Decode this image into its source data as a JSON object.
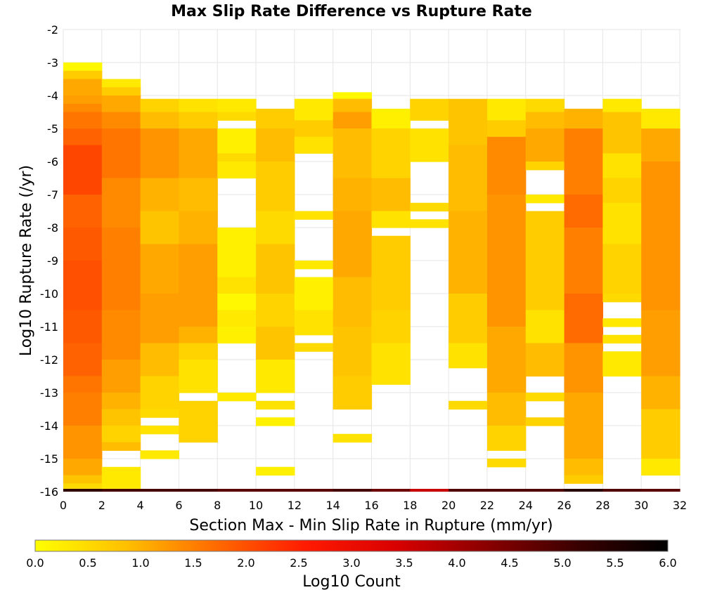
{
  "chart_data": {
    "type": "heatmap",
    "title": "Max Slip Rate Difference vs Rupture Rate",
    "xlabel": "Section Max - Min Slip Rate in Rupture (mm/yr)",
    "ylabel": "Log10 Rupture Rate (/yr)",
    "xlim": [
      0,
      32
    ],
    "ylim": [
      -16,
      -2
    ],
    "x_bin_width": 2,
    "y_bin_width": 0.25,
    "x_ticks": [
      "0",
      "2",
      "4",
      "6",
      "8",
      "10",
      "12",
      "14",
      "16",
      "18",
      "20",
      "22",
      "24",
      "26",
      "28",
      "30",
      "32"
    ],
    "y_ticks": [
      "-2",
      "-3",
      "-4",
      "-5",
      "-6",
      "-7",
      "-8",
      "-9",
      "-10",
      "-11",
      "-12",
      "-13",
      "-14",
      "-15",
      "-16"
    ],
    "grid": true,
    "colorbar": {
      "label": "Log10 Count",
      "range": [
        0,
        6
      ],
      "ticks": [
        "0.0",
        "0.5",
        "1.0",
        "1.5",
        "2.0",
        "2.5",
        "3.0",
        "3.5",
        "4.0",
        "4.5",
        "5.0",
        "5.5",
        "6.0"
      ],
      "colormap": [
        "#ffff00",
        "#ffc000",
        "#ff6a00",
        "#ff1a00",
        "#d80000",
        "#8a0000",
        "#3a0000",
        "#000000"
      ]
    },
    "columns": [
      {
        "x_range": [
          0,
          2
        ],
        "count_at_minus16": 5.3,
        "bins": [
          [
            -3.0,
            -3.25,
            0.1
          ],
          [
            -3.25,
            -3.5,
            0.7
          ],
          [
            -3.5,
            -4.0,
            1.1
          ],
          [
            -4.0,
            -4.25,
            1.2
          ],
          [
            -4.25,
            -4.5,
            1.4
          ],
          [
            -4.5,
            -5.0,
            1.6
          ],
          [
            -5.0,
            -5.5,
            1.8
          ],
          [
            -5.5,
            -7.0,
            2.1
          ],
          [
            -7.0,
            -8.0,
            1.8
          ],
          [
            -8.0,
            -9.0,
            1.9
          ],
          [
            -9.0,
            -10.5,
            2.0
          ],
          [
            -10.5,
            -11.5,
            1.9
          ],
          [
            -11.5,
            -12.5,
            1.8
          ],
          [
            -12.5,
            -13.0,
            1.6
          ],
          [
            -13.0,
            -14.0,
            1.5
          ],
          [
            -14.0,
            -15.0,
            1.3
          ],
          [
            -15.0,
            -15.5,
            1.1
          ],
          [
            -15.5,
            -15.75,
            0.8
          ],
          [
            -15.75,
            -15.9,
            0.5
          ]
        ]
      },
      {
        "x_range": [
          2,
          4
        ],
        "count_at_minus16": 5.0,
        "bins": [
          [
            -3.5,
            -3.75,
            0.3
          ],
          [
            -3.75,
            -4.0,
            0.7
          ],
          [
            -4.0,
            -4.5,
            1.1
          ],
          [
            -4.5,
            -5.0,
            1.4
          ],
          [
            -5.0,
            -6.5,
            1.6
          ],
          [
            -6.5,
            -8.0,
            1.4
          ],
          [
            -8.0,
            -10.5,
            1.5
          ],
          [
            -10.5,
            -12.0,
            1.4
          ],
          [
            -12.0,
            -13.0,
            1.2
          ],
          [
            -13.0,
            -13.5,
            1.0
          ],
          [
            -13.5,
            -14.0,
            0.8
          ],
          [
            -14.0,
            -14.5,
            0.6
          ],
          [
            -14.5,
            -14.75,
            0.9
          ],
          [
            -15.25,
            -15.9,
            0.3
          ]
        ]
      },
      {
        "x_range": [
          4,
          6
        ],
        "count_at_minus16": 5.0,
        "bins": [
          [
            -4.1,
            -4.5,
            0.6
          ],
          [
            -4.5,
            -5.0,
            0.9
          ],
          [
            -5.0,
            -6.5,
            1.3
          ],
          [
            -6.5,
            -7.5,
            1.0
          ],
          [
            -7.5,
            -8.5,
            0.8
          ],
          [
            -8.5,
            -10.0,
            1.1
          ],
          [
            -10.0,
            -11.5,
            1.2
          ],
          [
            -11.5,
            -12.5,
            0.9
          ],
          [
            -12.5,
            -13.5,
            0.6
          ],
          [
            -13.5,
            -13.75,
            0.5
          ],
          [
            -14.0,
            -14.25,
            0.4
          ],
          [
            -14.75,
            -15.0,
            0.3
          ]
        ]
      },
      {
        "x_range": [
          6,
          8
        ],
        "count_at_minus16": 5.0,
        "bins": [
          [
            -4.1,
            -4.5,
            0.4
          ],
          [
            -4.5,
            -5.0,
            0.7
          ],
          [
            -5.0,
            -6.5,
            1.1
          ],
          [
            -6.5,
            -7.5,
            0.9
          ],
          [
            -7.5,
            -8.5,
            1.0
          ],
          [
            -8.5,
            -11.0,
            1.2
          ],
          [
            -11.0,
            -11.5,
            1.0
          ],
          [
            -11.5,
            -12.0,
            0.6
          ],
          [
            -12.0,
            -13.0,
            0.4
          ],
          [
            -13.25,
            -14.5,
            0.6
          ]
        ]
      },
      {
        "x_range": [
          8,
          10
        ],
        "count_at_minus16": 4.8,
        "bins": [
          [
            -4.1,
            -4.5,
            0.3
          ],
          [
            -4.5,
            -4.75,
            0.5
          ],
          [
            -5.0,
            -5.75,
            0.2
          ],
          [
            -5.75,
            -6.0,
            0.5
          ],
          [
            -6.0,
            -6.5,
            0.3
          ],
          [
            -8.0,
            -9.5,
            0.2
          ],
          [
            -9.5,
            -10.0,
            0.4
          ],
          [
            -10.0,
            -10.5,
            0.1
          ],
          [
            -10.5,
            -11.0,
            0.3
          ],
          [
            -11.0,
            -11.5,
            0.2
          ],
          [
            -13.0,
            -13.25,
            0.3
          ]
        ]
      },
      {
        "x_range": [
          10,
          12
        ],
        "count_at_minus16": 4.8,
        "bins": [
          [
            -4.4,
            -5.0,
            0.7
          ],
          [
            -5.0,
            -6.0,
            0.9
          ],
          [
            -6.0,
            -7.5,
            0.7
          ],
          [
            -7.5,
            -8.5,
            0.5
          ],
          [
            -8.5,
            -10.0,
            0.8
          ],
          [
            -10.0,
            -11.0,
            0.6
          ],
          [
            -11.0,
            -12.0,
            0.8
          ],
          [
            -12.0,
            -13.0,
            0.3
          ],
          [
            -13.25,
            -13.5,
            0.4
          ],
          [
            -13.75,
            -14.0,
            0.2
          ],
          [
            -15.25,
            -15.5,
            0.2
          ]
        ]
      },
      {
        "x_range": [
          12,
          14
        ],
        "count_at_minus16": 4.8,
        "bins": [
          [
            -4.1,
            -4.75,
            0.3
          ],
          [
            -4.75,
            -5.25,
            0.7
          ],
          [
            -5.25,
            -5.75,
            0.4
          ],
          [
            -7.5,
            -7.75,
            0.4
          ],
          [
            -9.0,
            -9.25,
            0.3
          ],
          [
            -9.5,
            -10.5,
            0.2
          ],
          [
            -10.5,
            -11.25,
            0.4
          ],
          [
            -11.5,
            -11.75,
            0.5
          ]
        ]
      },
      {
        "x_range": [
          14,
          16
        ],
        "count_at_minus16": 5.0,
        "bins": [
          [
            -3.9,
            -4.1,
            0.1
          ],
          [
            -4.1,
            -4.5,
            0.9
          ],
          [
            -4.5,
            -5.0,
            1.2
          ],
          [
            -5.0,
            -6.5,
            0.9
          ],
          [
            -6.5,
            -7.5,
            1.0
          ],
          [
            -7.5,
            -9.5,
            1.1
          ],
          [
            -9.5,
            -11.0,
            0.9
          ],
          [
            -11.0,
            -12.5,
            0.8
          ],
          [
            -12.5,
            -13.5,
            0.7
          ],
          [
            -14.25,
            -14.5,
            0.4
          ]
        ]
      },
      {
        "x_range": [
          16,
          18
        ],
        "count_at_minus16": 4.6,
        "bins": [
          [
            -4.4,
            -5.0,
            0.2
          ],
          [
            -5.0,
            -6.5,
            0.6
          ],
          [
            -6.5,
            -7.5,
            0.9
          ],
          [
            -7.5,
            -8.0,
            0.4
          ],
          [
            -8.25,
            -10.5,
            0.7
          ],
          [
            -10.5,
            -11.5,
            0.6
          ],
          [
            -11.5,
            -12.75,
            0.4
          ]
        ]
      },
      {
        "x_range": [
          18,
          20
        ],
        "count_at_minus16": 3.6,
        "bins": [
          [
            -4.1,
            -4.75,
            0.6
          ],
          [
            -5.0,
            -6.0,
            0.4
          ],
          [
            -7.25,
            -7.5,
            0.5
          ],
          [
            -7.75,
            -8.0,
            0.4
          ]
        ]
      },
      {
        "x_range": [
          20,
          22
        ],
        "count_at_minus16": 4.9,
        "bins": [
          [
            -4.1,
            -5.5,
            0.8
          ],
          [
            -5.5,
            -7.5,
            0.9
          ],
          [
            -7.5,
            -10.0,
            1.0
          ],
          [
            -10.0,
            -11.5,
            0.7
          ],
          [
            -11.5,
            -12.25,
            0.4
          ],
          [
            -13.25,
            -13.5,
            0.5
          ]
        ]
      },
      {
        "x_range": [
          22,
          24
        ],
        "count_at_minus16": 4.9,
        "bins": [
          [
            -4.1,
            -4.75,
            0.3
          ],
          [
            -4.75,
            -5.25,
            0.7
          ],
          [
            -5.25,
            -7.0,
            1.4
          ],
          [
            -7.0,
            -11.0,
            1.3
          ],
          [
            -11.0,
            -13.0,
            1.1
          ],
          [
            -13.0,
            -14.0,
            0.9
          ],
          [
            -14.0,
            -14.75,
            0.6
          ],
          [
            -15.0,
            -15.25,
            0.5
          ]
        ]
      },
      {
        "x_range": [
          24,
          26
        ],
        "count_at_minus16": 4.9,
        "bins": [
          [
            -4.1,
            -4.5,
            0.5
          ],
          [
            -4.5,
            -5.0,
            0.9
          ],
          [
            -5.0,
            -6.0,
            1.1
          ],
          [
            -6.0,
            -6.25,
            0.6
          ],
          [
            -7.0,
            -7.25,
            0.3
          ],
          [
            -7.5,
            -10.5,
            0.7
          ],
          [
            -10.5,
            -11.5,
            0.4
          ],
          [
            -11.5,
            -12.5,
            0.9
          ],
          [
            -13.0,
            -13.25,
            0.5
          ],
          [
            -13.75,
            -14.0,
            0.6
          ]
        ]
      },
      {
        "x_range": [
          26,
          28
        ],
        "count_at_minus16": 5.4,
        "bins": [
          [
            -4.4,
            -5.0,
            1.0
          ],
          [
            -5.0,
            -7.0,
            1.5
          ],
          [
            -7.0,
            -8.0,
            1.7
          ],
          [
            -8.0,
            -10.0,
            1.5
          ],
          [
            -10.0,
            -11.5,
            1.7
          ],
          [
            -11.5,
            -13.0,
            1.3
          ],
          [
            -13.0,
            -15.0,
            1.1
          ],
          [
            -15.0,
            -15.5,
            0.9
          ],
          [
            -15.5,
            -15.75,
            0.7
          ]
        ]
      },
      {
        "x_range": [
          28,
          30
        ],
        "count_at_minus16": 4.9,
        "bins": [
          [
            -4.1,
            -4.5,
            0.3
          ],
          [
            -4.5,
            -5.75,
            0.8
          ],
          [
            -5.75,
            -6.5,
            0.4
          ],
          [
            -6.5,
            -7.25,
            0.6
          ],
          [
            -7.25,
            -8.5,
            0.4
          ],
          [
            -8.5,
            -10.0,
            0.6
          ],
          [
            -10.0,
            -10.25,
            0.5
          ],
          [
            -10.75,
            -11.0,
            0.3
          ],
          [
            -11.25,
            -11.5,
            0.4
          ],
          [
            -11.75,
            -12.5,
            0.3
          ]
        ]
      },
      {
        "x_range": [
          30,
          32
        ],
        "count_at_minus16": 4.8,
        "bins": [
          [
            -4.4,
            -5.0,
            0.3
          ],
          [
            -5.0,
            -6.0,
            1.1
          ],
          [
            -6.0,
            -10.5,
            1.3
          ],
          [
            -10.5,
            -12.5,
            1.2
          ],
          [
            -12.5,
            -13.5,
            1.0
          ],
          [
            -13.5,
            -15.0,
            0.7
          ],
          [
            -15.0,
            -15.5,
            0.3
          ]
        ]
      }
    ]
  }
}
